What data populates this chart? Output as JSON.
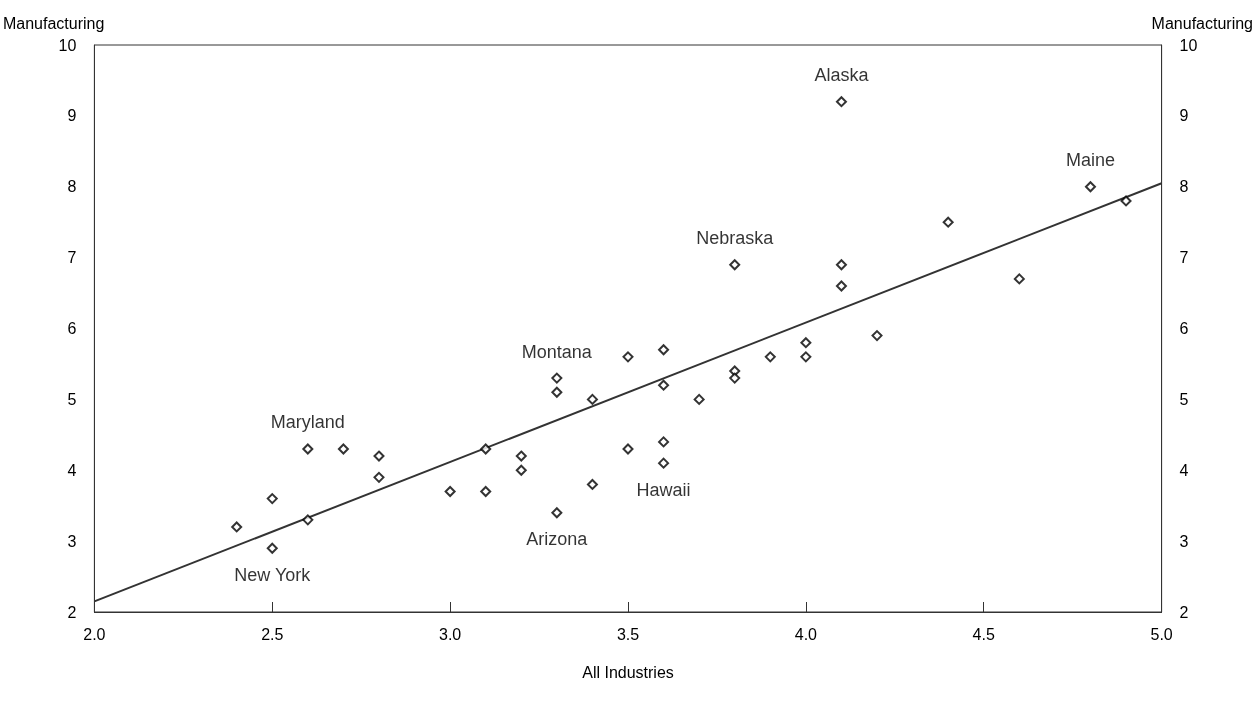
{
  "chart_data": {
    "type": "scatter",
    "xlabel": "All Industries",
    "ylabel": "Manufacturing",
    "y2label": "Manufacturing",
    "xlim": [
      2,
      5
    ],
    "xticks": [
      {
        "value": 2,
        "label": "2.0"
      },
      {
        "value": 2.5,
        "label": "2.5"
      },
      {
        "value": 3,
        "label": "3.0"
      },
      {
        "value": 3.5,
        "label": "3.5"
      },
      {
        "value": 4,
        "label": "4.0"
      },
      {
        "value": 4.5,
        "label": "4.5"
      },
      {
        "value": 5,
        "label": "5.0"
      }
    ],
    "ylim": [
      2,
      10
    ],
    "yticks": [
      2,
      3,
      4,
      5,
      6,
      7,
      8,
      9,
      10
    ],
    "y2lim": [
      2,
      10
    ],
    "y2ticks": [
      2,
      3,
      4,
      5,
      6,
      7,
      8,
      9,
      10
    ],
    "grid": false,
    "series": [
      {
        "marker": "diamond",
        "color": "#000000",
        "x": [
          2.4,
          2.5,
          2.5,
          2.6,
          2.6,
          2.7,
          2.8,
          2.8,
          3.0,
          3.1,
          3.1,
          3.2,
          3.2,
          3.3,
          3.3,
          3.3,
          3.4,
          3.4,
          3.5,
          3.5,
          3.6,
          3.6,
          3.6,
          3.6,
          3.7,
          3.8,
          3.8,
          3.8,
          3.9,
          4.0,
          4.0,
          4.1,
          4.1,
          4.1,
          4.2,
          4.4,
          4.6,
          4.8,
          4.9
        ],
        "values": [
          3.2,
          3.6,
          2.9,
          3.3,
          4.3,
          4.3,
          4.2,
          3.9,
          3.7,
          4.3,
          3.7,
          4.2,
          4.0,
          5.3,
          5.1,
          3.4,
          5.0,
          3.8,
          5.6,
          4.3,
          5.7,
          5.2,
          4.4,
          4.1,
          5.0,
          6.9,
          5.4,
          5.3,
          5.6,
          5.8,
          5.6,
          9.2,
          6.9,
          6.6,
          5.9,
          7.5,
          6.7,
          8.0,
          7.8
        ]
      },
      {
        "type": "line",
        "marker": "none",
        "color": "#333333",
        "x": [
          2,
          5
        ],
        "values": [
          2.15,
          8.05
        ]
      }
    ],
    "annotations": [
      {
        "text": "Alaska",
        "x": 4.1,
        "y": 9.2
      },
      {
        "text": "Maine",
        "x": 4.8,
        "y": 8.0
      },
      {
        "text": "Nebraska",
        "x": 3.8,
        "y": 6.9
      },
      {
        "text": "Montana",
        "x": 3.3,
        "y": 5.3
      },
      {
        "text": "Maryland",
        "x": 2.6,
        "y": 4.3
      },
      {
        "text": "Hawaii",
        "x": 3.6,
        "y": 4.1
      },
      {
        "text": "Arizona",
        "x": 3.3,
        "y": 3.4
      },
      {
        "text": "New York",
        "x": 2.5,
        "y": 2.9
      }
    ]
  }
}
